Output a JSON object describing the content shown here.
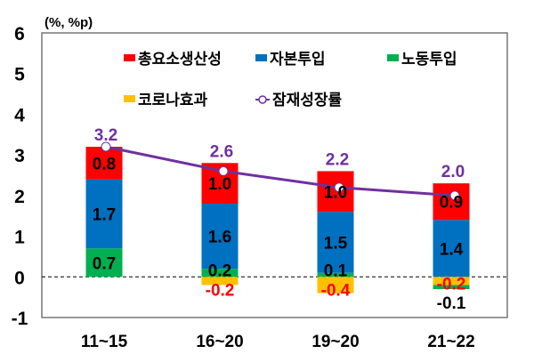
{
  "chart_data": {
    "type": "bar",
    "stacked": true,
    "unit_label": "(%, %p)",
    "categories": [
      "11~15",
      "16~20",
      "19~20",
      "21~22"
    ],
    "ylim": [
      -1,
      6
    ],
    "yticks": [
      -1,
      0,
      1,
      2,
      3,
      4,
      5,
      6
    ],
    "grid": false,
    "zero_line": "dashed",
    "legend_position": "top",
    "series": [
      {
        "name": "총요소생산성",
        "color": "#ff0000",
        "values": [
          0.8,
          1.0,
          1.0,
          0.9
        ],
        "labels": [
          "0.8",
          "1.0",
          "1.0",
          "0.9"
        ]
      },
      {
        "name": "자본투입",
        "color": "#0070c0",
        "values": [
          1.7,
          1.6,
          1.5,
          1.4
        ],
        "labels": [
          "1.7",
          "1.6",
          "1.5",
          "1.4"
        ]
      },
      {
        "name": "노동투입",
        "color": "#00b050",
        "values": [
          0.7,
          0.2,
          0.1,
          -0.1
        ],
        "labels": [
          "0.7",
          "0.2",
          "0.1",
          "-0.1"
        ]
      },
      {
        "name": "코로나효과",
        "color": "#ffc000",
        "values": [
          0,
          -0.2,
          -0.4,
          -0.2
        ],
        "labels": [
          "",
          "-0.2",
          "-0.4",
          "-0.2"
        ]
      }
    ],
    "line": {
      "name": "잠재성장률",
      "color": "#7030a0",
      "values": [
        3.2,
        2.6,
        2.2,
        2.0
      ],
      "labels": [
        "3.2",
        "2.6",
        "2.2",
        "2.0"
      ]
    }
  }
}
